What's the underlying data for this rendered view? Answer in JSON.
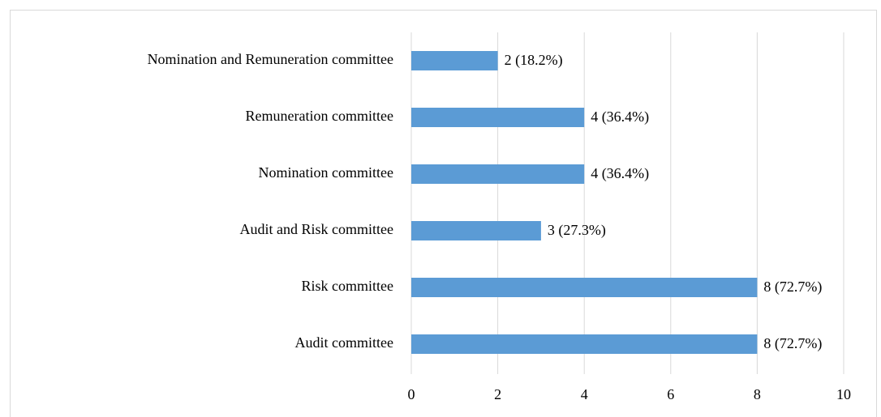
{
  "chart_data": {
    "type": "hbar",
    "categories": [
      "Nomination and Remuneration committee",
      "Remuneration committee",
      "Nomination committee",
      "Audit and Risk committee",
      "Risk committee",
      "Audit committee"
    ],
    "values": [
      2,
      4,
      4,
      3,
      8,
      8
    ],
    "value_labels": [
      "2 (18.2%)",
      "4 (36.4%)",
      "4 (36.4%)",
      "3 (27.3%)",
      "8 (72.7%)",
      "8 (72.7%)"
    ],
    "color": "#5b9bd5",
    "xlim": [
      0,
      10
    ],
    "xticks": [
      0,
      2,
      4,
      6,
      8,
      10
    ],
    "grid": true
  }
}
